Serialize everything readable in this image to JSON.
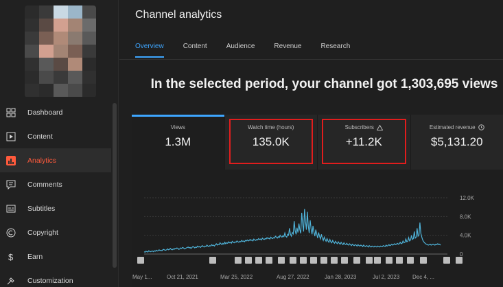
{
  "sidebar": {
    "items": [
      {
        "label": "Dashboard",
        "icon": "dashboard-icon",
        "active": false
      },
      {
        "label": "Content",
        "icon": "content-icon",
        "active": false
      },
      {
        "label": "Analytics",
        "icon": "analytics-icon",
        "active": true
      },
      {
        "label": "Comments",
        "icon": "comments-icon",
        "active": false
      },
      {
        "label": "Subtitles",
        "icon": "subtitles-icon",
        "active": false
      },
      {
        "label": "Copyright",
        "icon": "copyright-icon",
        "active": false
      },
      {
        "label": "Earn",
        "icon": "earn-icon",
        "active": false
      },
      {
        "label": "Customization",
        "icon": "customization-icon",
        "active": false
      }
    ]
  },
  "header": {
    "title": "Channel analytics",
    "tabs": [
      "Overview",
      "Content",
      "Audience",
      "Revenue",
      "Research"
    ],
    "active_tab": "Overview"
  },
  "headline": "In the selected period, your channel got 1,303,695 views",
  "cards": [
    {
      "label": "Views",
      "value": "1.3M",
      "selected": true,
      "highlighted": false
    },
    {
      "label": "Watch time (hours)",
      "value": "135.0K",
      "selected": false,
      "highlighted": true
    },
    {
      "label": "Subscribers",
      "value": "+11.2K",
      "selected": false,
      "highlighted": true,
      "icon": "warning-icon"
    },
    {
      "label": "Estimated revenue",
      "value": "$5,131.20",
      "selected": false,
      "highlighted": false,
      "icon": "clock-icon"
    }
  ],
  "colors": {
    "accent": "#3ea6ff",
    "active_nav": "#ff5a3c",
    "highlight_box": "#e11d1d",
    "line": "#4fb3d9"
  },
  "chart_data": {
    "type": "line",
    "x_tick_labels": [
      "May 1...",
      "Oct 21, 2021",
      "Mar 25, 2022",
      "Aug 27, 2022",
      "Jan 28, 2023",
      "Jul 2, 2023",
      "Dec 4, ..."
    ],
    "y_tick_labels": [
      "12.0K",
      "8.0K",
      "4.0K",
      "0"
    ],
    "ylim": [
      0,
      12000
    ],
    "series": [
      {
        "values": [
          500,
          400,
          600,
          500,
          450,
          700,
          550,
          500,
          600,
          650,
          500,
          700,
          600,
          800,
          650,
          700,
          900,
          750,
          800,
          700,
          900,
          1000,
          850,
          800,
          900,
          1100,
          900,
          1000,
          1200,
          1000,
          900,
          1100,
          1000,
          1200,
          1100,
          1300,
          1200,
          1000,
          1100,
          1300,
          1200,
          1400,
          1300,
          1100,
          1200,
          1300,
          1400,
          1500,
          1300,
          1400,
          1200,
          1400,
          1600,
          1500,
          1300,
          1500,
          1400,
          1700,
          1500,
          1600,
          1400,
          1600,
          1800,
          1600,
          1500,
          1700,
          1600,
          1900,
          1700,
          1600,
          1800,
          1700,
          2000,
          1800,
          1900,
          1700,
          2000,
          2200,
          1900,
          2100,
          2000,
          2400,
          2200,
          2000,
          2300,
          2100,
          2500,
          2200,
          2400,
          2300,
          2600,
          2400,
          2500,
          2300,
          2700,
          2500,
          2400,
          2600,
          2500,
          2800,
          2600,
          2500,
          2700,
          2600,
          2900,
          2700,
          2800,
          2600,
          2900,
          2800,
          3000,
          2800,
          2900,
          3100,
          2900,
          3000,
          2800,
          3200,
          3000,
          2900,
          3100,
          3000,
          3300,
          3100,
          3200,
          3000,
          3400,
          3200,
          3100,
          3300,
          3200,
          3500,
          3300,
          3400,
          3200,
          3600,
          3400,
          3300,
          3500,
          3400,
          3800,
          3600,
          3400,
          3700,
          3500,
          4000,
          3700,
          3600,
          3900,
          3700,
          4500,
          3800,
          3600,
          4200,
          4000,
          5500,
          4200,
          3800,
          4600,
          4300,
          7000,
          5000,
          4200,
          5600,
          4600,
          6500,
          5200,
          4400,
          8800,
          6500,
          4800,
          9600,
          7000,
          5200,
          9000,
          6000,
          4500,
          7200,
          5400,
          4200,
          6000,
          4800,
          3800,
          5200,
          4300,
          3400,
          4600,
          3800,
          3200,
          4200,
          3400,
          2900,
          3600,
          3100,
          2700,
          3300,
          2800,
          2500,
          3100,
          2600,
          2400,
          2900,
          2500,
          2300,
          2700,
          2400,
          2200,
          2600,
          2300,
          2100,
          2500,
          2200,
          2000,
          2400,
          2100,
          2000,
          2300,
          2000,
          1900,
          2200,
          2000,
          1800,
          2100,
          1900,
          1800,
          2000,
          1900,
          1700,
          2000,
          1800,
          1700,
          1900,
          1800,
          1600,
          1900,
          1700,
          1600,
          1800,
          1700,
          1500,
          1800,
          1600,
          1500,
          1700,
          1600,
          1500,
          1700,
          1600,
          1500,
          1700,
          1600,
          1500,
          1700,
          1600,
          1600,
          1800,
          1700,
          1600,
          1900,
          1700,
          1800,
          2000,
          1800,
          1900,
          2100,
          1900,
          2000,
          2200,
          2000,
          2100,
          2300,
          2100,
          2200,
          2500,
          2200,
          2300,
          2800,
          2400,
          2500,
          3200,
          2600,
          2700,
          3500,
          2800,
          3000,
          4000,
          3100,
          3300,
          4800,
          3400,
          3600,
          5500,
          3800,
          4100,
          6700,
          4400,
          3600,
          3000,
          2600,
          2400,
          2200,
          2100,
          2000,
          1900,
          2000,
          2100,
          1900,
          2000,
          2100,
          2000,
          1900,
          2100,
          2000,
          2200,
          2000,
          2100,
          1900
        ]
      }
    ]
  }
}
